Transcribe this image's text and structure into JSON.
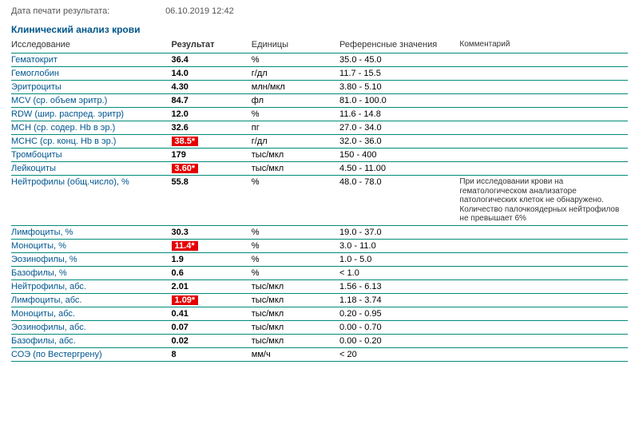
{
  "meta": {
    "print_label": "Дата печати результата:",
    "print_date": "06.10.2019 12:42"
  },
  "title": "Клинический анализ крови",
  "headers": {
    "test": "Исследование",
    "result": "Результат",
    "units": "Единицы",
    "ref": "Референсные значения",
    "comment": "Комментарий"
  },
  "colors": {
    "link_blue": "#00568f",
    "border_teal": "#008b7a",
    "flag_red": "#e40000",
    "flag_text": "#ffffff"
  },
  "rows": [
    {
      "name": "Гематокрит",
      "result": "36.4",
      "flag": false,
      "units": "%",
      "ref": "35.0 - 45.0",
      "comment": ""
    },
    {
      "name": "Гемоглобин",
      "result": "14.0",
      "flag": false,
      "units": "г/дл",
      "ref": "11.7 - 15.5",
      "comment": ""
    },
    {
      "name": "Эритроциты",
      "result": "4.30",
      "flag": false,
      "units": "млн/мкл",
      "ref": "3.80 - 5.10",
      "comment": ""
    },
    {
      "name": "MCV (ср. объем эритр.)",
      "result": "84.7",
      "flag": false,
      "units": "фл",
      "ref": "81.0 - 100.0",
      "comment": ""
    },
    {
      "name": "RDW (шир. распред. эритр)",
      "result": "12.0",
      "flag": false,
      "units": "%",
      "ref": "11.6 - 14.8",
      "comment": ""
    },
    {
      "name": "MCH (ср. содер. Hb в эр.)",
      "result": "32.6",
      "flag": false,
      "units": "пг",
      "ref": "27.0 - 34.0",
      "comment": ""
    },
    {
      "name": "МСНС (ср. конц. Hb в эр.)",
      "result": "38.5*",
      "flag": true,
      "units": "г/дл",
      "ref": "32.0 - 36.0",
      "comment": ""
    },
    {
      "name": "Тромбоциты",
      "result": "179",
      "flag": false,
      "units": "тыс/мкл",
      "ref": "150 - 400",
      "comment": ""
    },
    {
      "name": "Лейкоциты",
      "result": "3.60*",
      "flag": true,
      "units": "тыс/мкл",
      "ref": "4.50 - 11.00",
      "comment": ""
    },
    {
      "name": "Нейтрофилы (общ.число), %",
      "result": "55.8",
      "flag": false,
      "units": "%",
      "ref": "48.0 - 78.0",
      "comment": "При исследовании крови на гематологическом анализаторе патологических клеток не обнаружено. Количество палочкоядерных нейтрофилов не превышает 6%"
    },
    {
      "name": "Лимфоциты, %",
      "result": "30.3",
      "flag": false,
      "units": "%",
      "ref": "19.0 - 37.0",
      "comment": ""
    },
    {
      "name": "Моноциты, %",
      "result": "11.4*",
      "flag": true,
      "units": "%",
      "ref": "3.0 - 11.0",
      "comment": ""
    },
    {
      "name": "Эозинофилы, %",
      "result": "1.9",
      "flag": false,
      "units": "%",
      "ref": "1.0 - 5.0",
      "comment": ""
    },
    {
      "name": "Базофилы, %",
      "result": "0.6",
      "flag": false,
      "units": "%",
      "ref": "< 1.0",
      "comment": ""
    },
    {
      "name": "Нейтрофилы, абс.",
      "result": "2.01",
      "flag": false,
      "units": "тыс/мкл",
      "ref": "1.56 - 6.13",
      "comment": ""
    },
    {
      "name": "Лимфоциты, абс.",
      "result": "1.09*",
      "flag": true,
      "units": "тыс/мкл",
      "ref": "1.18 - 3.74",
      "comment": ""
    },
    {
      "name": "Моноциты, абс.",
      "result": "0.41",
      "flag": false,
      "units": "тыс/мкл",
      "ref": "0.20 - 0.95",
      "comment": ""
    },
    {
      "name": "Эозинофилы, абс.",
      "result": "0.07",
      "flag": false,
      "units": "тыс/мкл",
      "ref": "0.00 - 0.70",
      "comment": ""
    },
    {
      "name": "Базофилы, абс.",
      "result": "0.02",
      "flag": false,
      "units": "тыс/мкл",
      "ref": "0.00 - 0.20",
      "comment": ""
    },
    {
      "name": "СОЭ (по Вестергрену)",
      "result": "8",
      "flag": false,
      "units": "мм/ч",
      "ref": "< 20",
      "comment": ""
    }
  ]
}
